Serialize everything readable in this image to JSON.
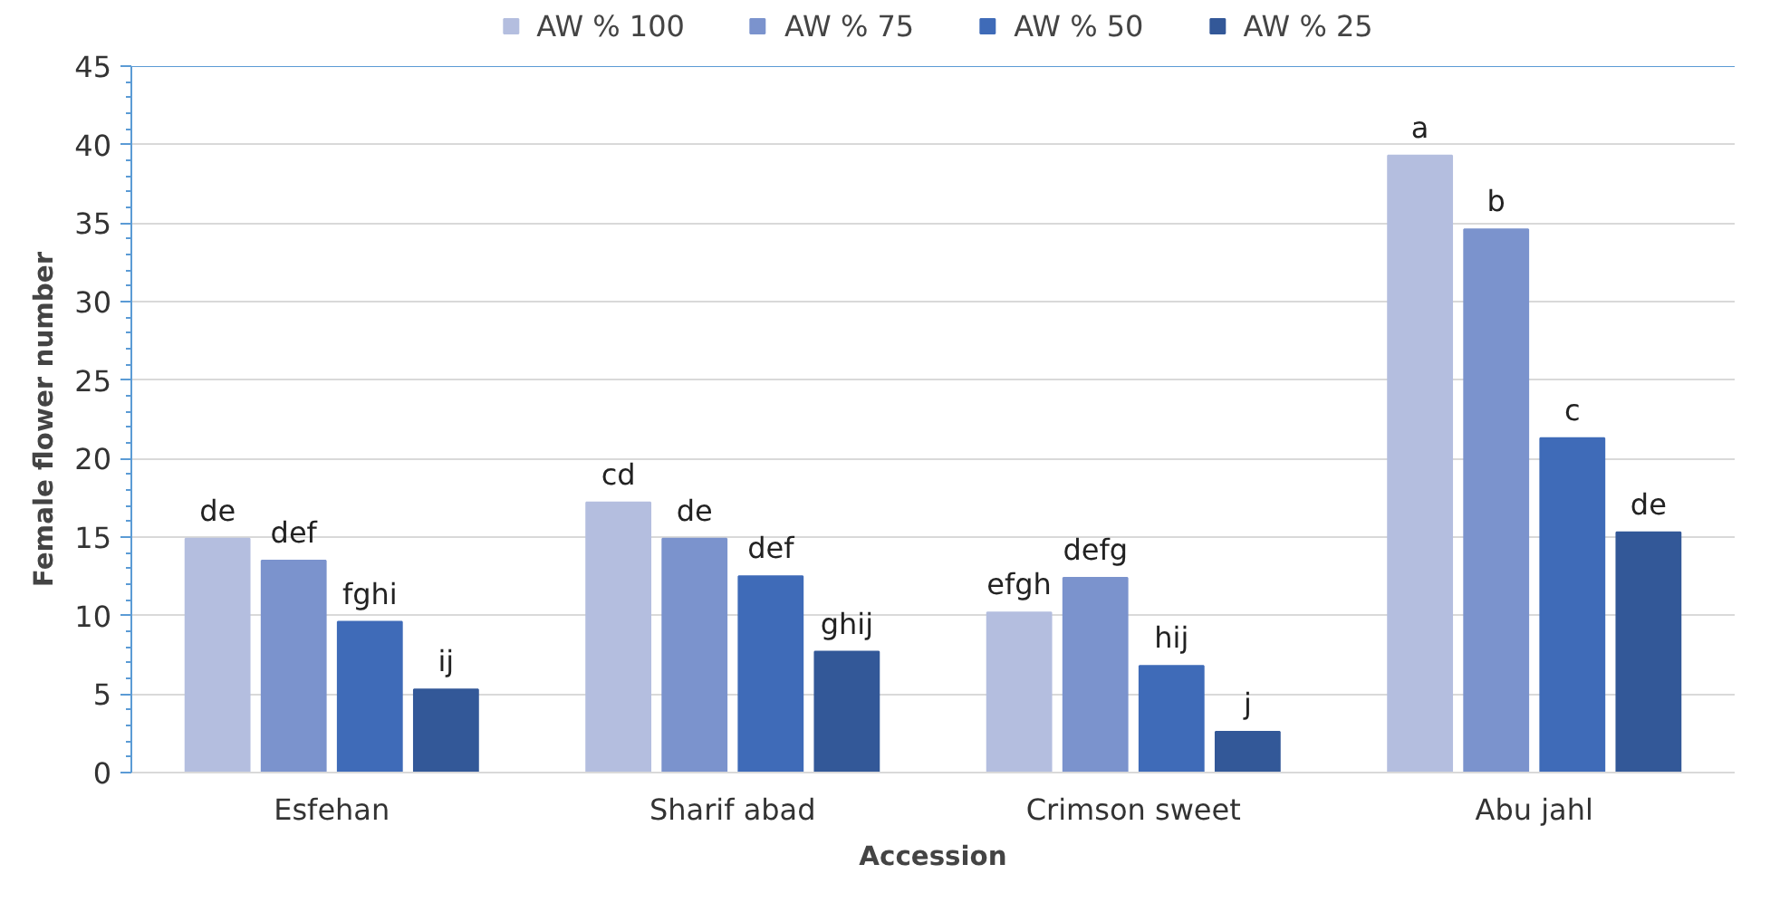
{
  "chart_data": {
    "type": "bar",
    "xlabel": "Accession",
    "ylabel": "Female flower number",
    "categories": [
      "Esfehan",
      "Sharif abad",
      "Crimson sweet",
      "Abu jahl"
    ],
    "series": [
      {
        "name": "AW % 100",
        "color": "#b4bedf",
        "values": [
          14.9,
          17.2,
          10.2,
          39.3
        ],
        "value_labels": [
          "de",
          "cd",
          "efgh",
          "a"
        ]
      },
      {
        "name": "AW % 75",
        "color": "#7b93cd",
        "values": [
          13.5,
          14.9,
          12.4,
          34.6
        ],
        "value_labels": [
          "def",
          "de",
          "defg",
          "b"
        ]
      },
      {
        "name": "AW % 50",
        "color": "#3f6bb8",
        "values": [
          9.6,
          12.5,
          6.8,
          21.3
        ],
        "value_labels": [
          "fghi",
          "def",
          "hij",
          "c"
        ]
      },
      {
        "name": "AW % 25",
        "color": "#335898",
        "values": [
          5.3,
          7.7,
          2.6,
          15.3
        ],
        "value_labels": [
          "ij",
          "ghij",
          "j",
          "de"
        ]
      }
    ],
    "ylim": [
      0,
      45
    ],
    "yticks": [
      0,
      5,
      10,
      15,
      20,
      25,
      30,
      35,
      40,
      45
    ],
    "grid": "y",
    "legend": "top"
  }
}
